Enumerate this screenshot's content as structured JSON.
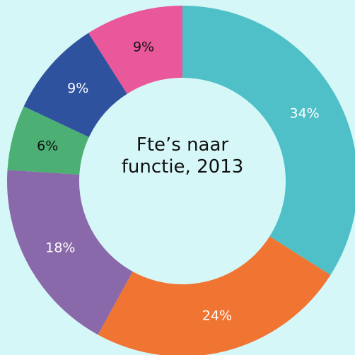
{
  "chart_data": {
    "type": "donut",
    "title": "Fte’s naar functie, 2013",
    "values": [
      34,
      24,
      18,
      6,
      9,
      9
    ],
    "value_labels": [
      "34%",
      "24%",
      "18%",
      "6%",
      "9%",
      "9%"
    ],
    "colors": [
      "#4fc0c8",
      "#f07533",
      "#8a69aa",
      "#4caf73",
      "#2e529e",
      "#e9589a"
    ]
  }
}
